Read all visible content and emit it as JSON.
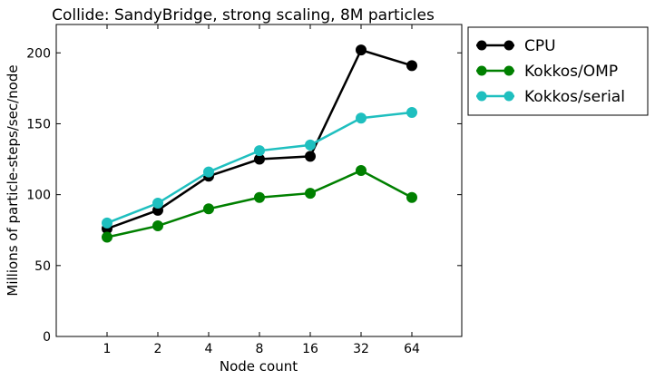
{
  "chart_data": {
    "type": "line",
    "title": "Collide: SandyBridge, strong scaling, 8M particles",
    "xlabel": "Node count",
    "ylabel": "Millions of particle-steps/sec/node",
    "categories": [
      "1",
      "2",
      "4",
      "8",
      "16",
      "32",
      "64"
    ],
    "ylim": [
      0,
      220
    ],
    "yticks": [
      0,
      50,
      100,
      150,
      200
    ],
    "grid": false,
    "legend_position": "upper-right, outside the plot",
    "series": [
      {
        "name": "CPU",
        "color": "#000000",
        "values": [
          76,
          89,
          113,
          125,
          127,
          202,
          191
        ]
      },
      {
        "name": "Kokkos/OMP",
        "color": "#008000",
        "values": [
          70,
          78,
          90,
          98,
          101,
          117,
          98
        ]
      },
      {
        "name": "Kokkos/serial",
        "color": "#1fbfbf",
        "values": [
          80,
          94,
          116,
          131,
          135,
          154,
          158
        ]
      }
    ]
  }
}
